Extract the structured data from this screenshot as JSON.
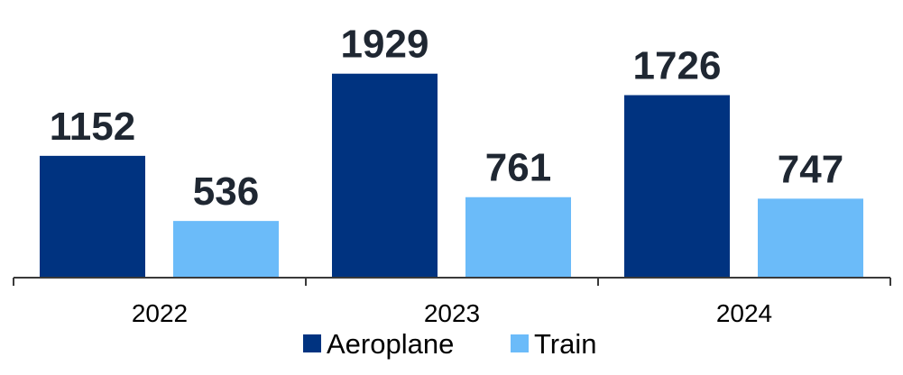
{
  "chart_data": {
    "type": "bar",
    "categories": [
      "2022",
      "2023",
      "2024"
    ],
    "series": [
      {
        "name": "Aeroplane",
        "values": [
          1152,
          1929,
          1726
        ],
        "color": "#003380"
      },
      {
        "name": "Train",
        "values": [
          536,
          761,
          747
        ],
        "color": "#6bbbf9"
      }
    ],
    "title": "",
    "xlabel": "",
    "ylabel": "",
    "ylim": [
      0,
      2000
    ],
    "grid": false,
    "data_labels": true,
    "legend_position": "bottom",
    "axis_color": "#3a3a3a"
  }
}
